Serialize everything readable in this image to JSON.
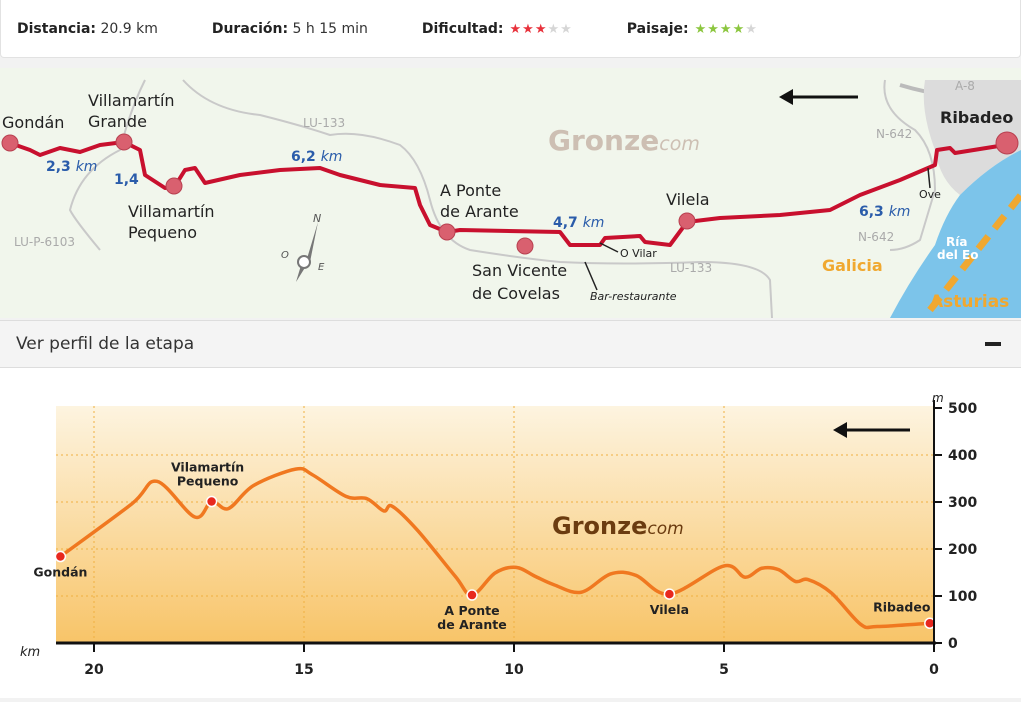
{
  "summary": {
    "distance_label": "Distancia:",
    "distance_value": "20.9 km",
    "duration_label": "Duración:",
    "duration_value": "5 h 15 min",
    "difficulty_label": "Dificultad:",
    "difficulty_stars": 3,
    "landscape_label": "Paisaje:",
    "landscape_stars": 4,
    "stars_max": 5,
    "colors": {
      "difficulty": "#e8323c",
      "landscape": "#8cc63f",
      "empty": "#d6d6d6"
    }
  },
  "map": {
    "watermark": "Gronze",
    "watermark_suffix": "com",
    "places": {
      "gondan": "Gondán",
      "vg1": "Villamartín",
      "vg2": "Grande",
      "vp1": "Villamartín",
      "vp2": "Pequeno",
      "ap1": "A Ponte",
      "ap2": "de Arante",
      "sv1": "San Vicente",
      "sv2": "de Covelas",
      "vilela": "Vilela",
      "ribadeo": "Ribadeo"
    },
    "small": {
      "ovilar": "O Vilar",
      "bar": "Bar-restaurante",
      "ove": "Ove"
    },
    "roads": {
      "lu133a": "LU-133",
      "lu133b": "LU-133",
      "lup6103": "LU-P-6103",
      "n642a": "N-642",
      "n642b": "N-642",
      "a8": "A-8"
    },
    "segments": {
      "s1": "2,3",
      "s2": "1,4",
      "s3": "6,2",
      "s4": "4,7",
      "s5": "6,3",
      "unit": "km"
    },
    "regions": {
      "galicia": "Galicia",
      "asturias": "Asturias",
      "ria1": "Ría",
      "ria2": "del Eo"
    },
    "compass": {
      "n": "N",
      "o": "O",
      "e": "E"
    },
    "direction": "west",
    "colors": {
      "route": "#c8102e",
      "segment_label": "#2a5caa",
      "water": "#7cc4ea",
      "region": "#f0a830"
    }
  },
  "profile_toggle": {
    "label": "Ver perfil de la etapa",
    "icon": "minus-icon"
  },
  "chart_data": {
    "type": "area",
    "xlabel": "km",
    "ylabel": "m",
    "xlim": [
      20.9,
      0
    ],
    "ylim": [
      0,
      500
    ],
    "xticks": [
      20,
      15,
      10,
      5,
      0
    ],
    "yticks": [
      0,
      100,
      200,
      300,
      400,
      500
    ],
    "grid": true,
    "watermark": "Gronze",
    "watermark_suffix": "com",
    "direction": "decreasing-km arrow",
    "x": [
      20.8,
      19.1,
      18.5,
      17.6,
      17.2,
      16.8,
      16.2,
      15.2,
      14.8,
      14.0,
      13.5,
      13.1,
      12.9,
      12.3,
      11.4,
      11.0,
      10.45,
      9.95,
      9.5,
      9.05,
      8.4,
      7.7,
      7.1,
      6.3,
      5.0,
      4.5,
      4.1,
      3.7,
      3.3,
      3.0,
      2.45,
      1.75,
      1.35,
      0.1
    ],
    "y": [
      184,
      296,
      344,
      268,
      301,
      286,
      335,
      370,
      358,
      312,
      307,
      281,
      291,
      240,
      142,
      102,
      149,
      161,
      142,
      124,
      108,
      147,
      144,
      104,
      164,
      140,
      159,
      156,
      131,
      135,
      107,
      40,
      35,
      42
    ],
    "waypoints": [
      {
        "name": "Gondán",
        "km": 20.8,
        "m": 184
      },
      {
        "name": "Vilamartín Pequeno",
        "km": 17.2,
        "m": 301
      },
      {
        "name": "A Ponte de Arante",
        "km": 11.0,
        "m": 102
      },
      {
        "name": "Vilela",
        "km": 6.3,
        "m": 104
      },
      {
        "name": "Ribadeo",
        "km": 0.1,
        "m": 42
      }
    ],
    "colors": {
      "line": "#f07820",
      "point": "#e8281e",
      "grid": "#f0b040"
    }
  }
}
